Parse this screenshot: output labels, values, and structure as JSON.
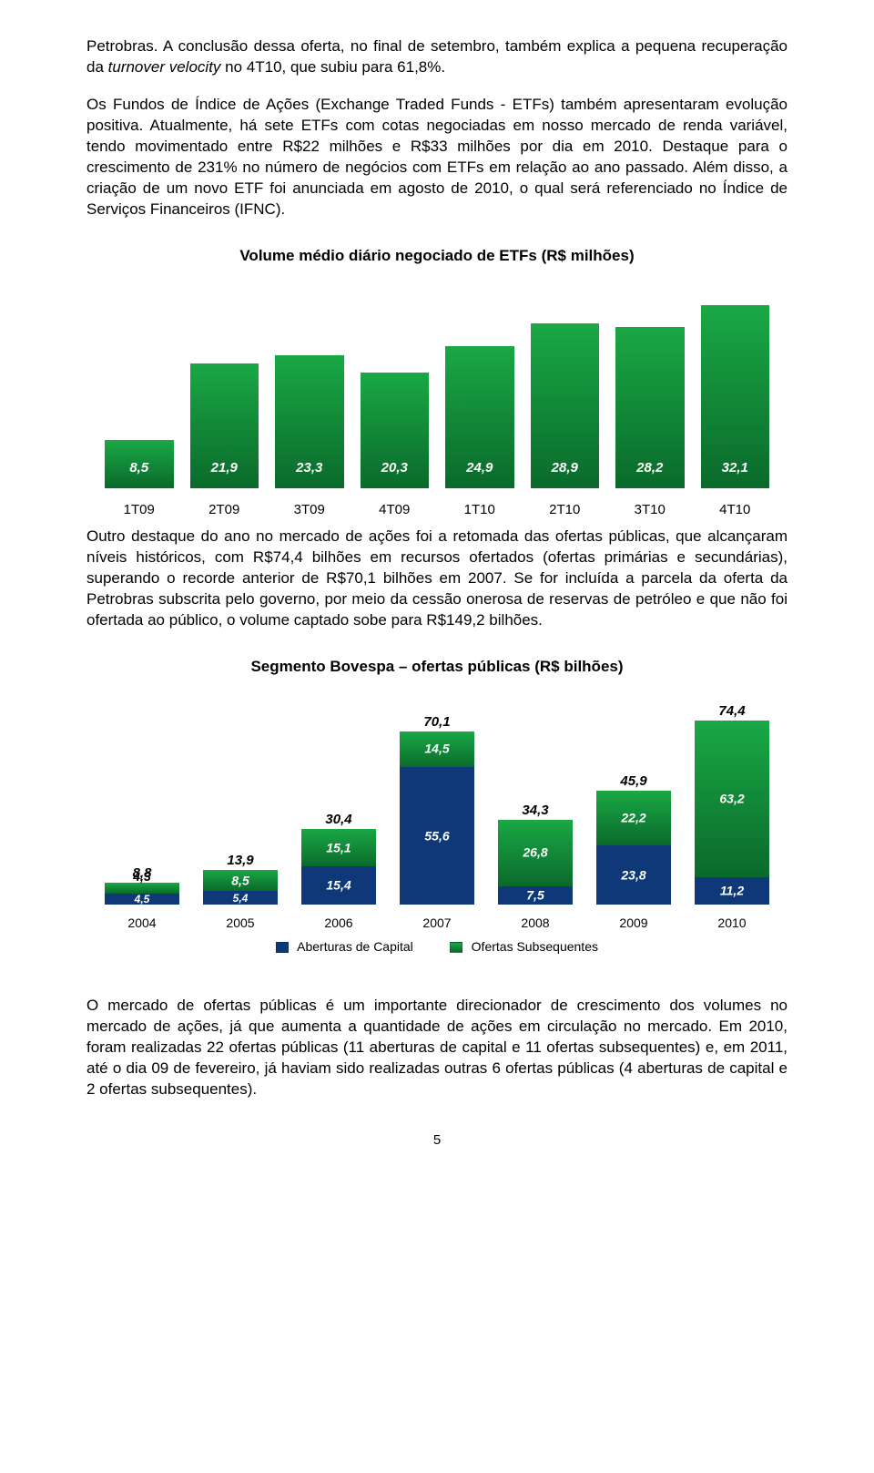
{
  "paragraph1_html": "Petrobras. A conclusão dessa oferta, no final de setembro, também explica a pequena recuperação da <i>turnover velocity</i> no 4T10, que subiu para 61,8%.",
  "paragraph2": "Os Fundos de Índice de Ações (Exchange Traded Funds - ETFs) também apresentaram evolução positiva. Atualmente, há sete ETFs com cotas negociadas em nosso mercado de renda variável, tendo movimentado entre R$22 milhões e R$33 milhões por dia em 2010. Destaque para o crescimento de 231% no número de negócios com ETFs em relação ao ano passado. Além disso, a criação de um novo ETF foi anunciada em agosto de 2010, o qual será referenciado no Índice de Serviços Financeiros (IFNC).",
  "chart1": {
    "title": "Volume médio diário negociado de ETFs (R$ milhões)",
    "xlabels": [
      "1T09",
      "2T09",
      "3T09",
      "4T09",
      "1T10",
      "2T10",
      "3T10",
      "4T10"
    ],
    "values": [
      8.5,
      21.9,
      23.3,
      20.3,
      24.9,
      28.9,
      28.2,
      32.1
    ],
    "value_labels": [
      "8,5",
      "21,9",
      "23,3",
      "20,3",
      "24,9",
      "28,9",
      "28,2",
      "32,1"
    ],
    "bar_top_color": "#1aa845",
    "bar_bottom_color": "#0a6a2b",
    "text_color": "#ffffff",
    "xaxis_fontsize": 15,
    "ymax": 36
  },
  "paragraph3": "Outro destaque do ano no mercado de ações foi a retomada das ofertas públicas, que alcançaram níveis históricos, com R$74,4 bilhões em recursos ofertados (ofertas primárias e secundárias), superando o recorde anterior de R$70,1 bilhões em 2007. Se for incluída a parcela da oferta da Petrobras subscrita pelo governo, por meio da cessão onerosa de reservas de petróleo e que não foi ofertada ao público, o volume captado sobe para R$149,2 bilhões.",
  "chart2": {
    "title": "Segmento Bovespa – ofertas públicas (R$ bilhões)",
    "xlabels": [
      "2004",
      "2005",
      "2006",
      "2007",
      "2008",
      "2009",
      "2010"
    ],
    "aberturas": [
      4.5,
      5.4,
      15.4,
      55.6,
      7.5,
      23.8,
      11.2
    ],
    "subsequentes": [
      4.3,
      8.5,
      15.1,
      14.5,
      26.8,
      22.2,
      63.2
    ],
    "aberturas_labels": [
      "4,5",
      "5,4",
      "15,4",
      "55,6",
      "7,5",
      "23,8",
      "11,2"
    ],
    "subsequentes_labels": [
      "4,3",
      "8,5",
      "15,1",
      "14,5",
      "26,8",
      "22,2",
      "63,2"
    ],
    "totals_labels": [
      "8,8",
      "13,9",
      "30,4",
      "70,1",
      "34,3",
      "45,9",
      "74,4"
    ],
    "aberturas_color": "#0e3878",
    "subsequentes_top_color": "#1aa845",
    "subsequentes_bottom_color": "#0a6a2b",
    "legend_a": "Aberturas de Capital",
    "legend_b": "Ofertas Subsequentes",
    "ymax": 85
  },
  "paragraph4": "O mercado de ofertas públicas é um importante direcionador de crescimento dos volumes no mercado de ações, já que aumenta a quantidade de ações em circulação no mercado. Em 2010, foram realizadas 22 ofertas públicas (11 aberturas de capital e 11 ofertas subsequentes) e, em 2011, até o dia 09 de fevereiro, já haviam sido realizadas outras 6 ofertas públicas (4 aberturas de capital e 2 ofertas subsequentes).",
  "page_number": "5"
}
